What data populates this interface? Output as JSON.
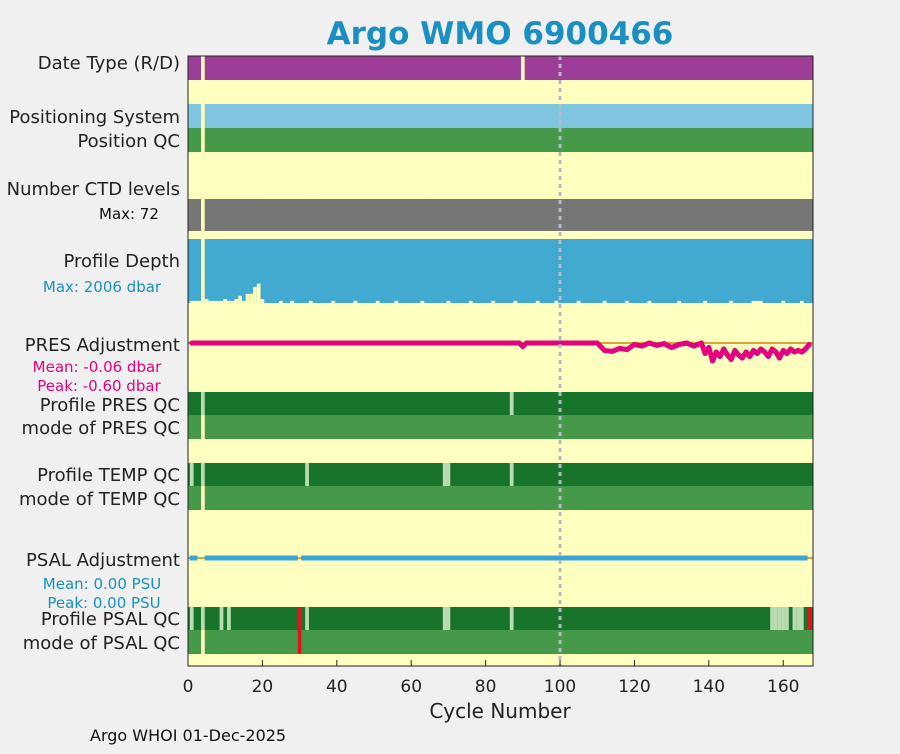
{
  "chart_data": {
    "type": "status_timeline",
    "title": "Argo WMO 6900466",
    "xlabel": "Cycle Number",
    "xlim": [
      0,
      168
    ],
    "xticks": [
      0,
      20,
      40,
      60,
      80,
      100,
      120,
      140,
      160
    ],
    "reference_line_x": 100,
    "footer": "Argo WHOI 01-Dec-2025",
    "rows": [
      {
        "id": "date-type",
        "label": "Date Type (R/D)",
        "color": "#9c3e98",
        "gaps": [
          4,
          90
        ]
      },
      {
        "id": "positioning-system",
        "label": "Positioning System",
        "color": "#7fc5e0",
        "gaps": [
          4
        ]
      },
      {
        "id": "position-qc",
        "label": "Position QC",
        "color": "#47994a",
        "gaps": [
          4
        ]
      },
      {
        "id": "ctd-levels",
        "label": "Number CTD levels",
        "sublabel": "Max: 72",
        "color": "#767676",
        "max": 72
      },
      {
        "id": "profile-depth",
        "label": "Profile Depth",
        "sublabel": "Max: 2006 dbar",
        "color": "#42aad0",
        "max": 2006
      },
      {
        "id": "pres-adjustment",
        "label": "PRES Adjustment",
        "sublabel1": "Mean: -0.06 dbar",
        "sublabel2": "Peak: -0.60 dbar",
        "color": "#e4007f"
      },
      {
        "id": "profile-pres-qc",
        "label": "Profile PRES QC",
        "color": "#17742a",
        "light_cycles": [
          4,
          87
        ]
      },
      {
        "id": "mode-pres-qc",
        "label": "mode of PRES QC",
        "color": "#47994a",
        "gaps": [
          4
        ]
      },
      {
        "id": "profile-temp-qc",
        "label": "Profile TEMP QC",
        "color": "#17742a",
        "light_cycles": [
          1,
          4,
          32,
          69,
          70,
          87
        ]
      },
      {
        "id": "mode-temp-qc",
        "label": "mode of TEMP QC",
        "color": "#47994a",
        "gaps": [
          4
        ]
      },
      {
        "id": "psal-adjustment",
        "label": "PSAL Adjustment",
        "sublabel1": "Mean: 0.00 PSU",
        "sublabel2": "Peak: 0.00 PSU",
        "color": "#3aa5d4"
      },
      {
        "id": "profile-psal-qc",
        "label": "Profile PSAL QC",
        "color": "#17742a",
        "light_cycles": [
          1,
          4,
          9,
          11,
          32,
          69,
          70,
          87,
          157,
          158,
          159,
          160,
          161,
          163,
          164,
          165
        ],
        "red_cycles": [
          30,
          167
        ]
      },
      {
        "id": "mode-psal-qc",
        "label": "mode of PSAL QC",
        "color": "#47994a",
        "gaps": [
          4
        ],
        "red_cycles": [
          30
        ]
      }
    ],
    "ctd_levels_reduced": [
      {
        "cycle": 1,
        "value": 69
      },
      {
        "cycle": 2,
        "value": 70
      },
      {
        "cycle": 3,
        "value": 70
      },
      {
        "cycle": 5,
        "value": 68
      },
      {
        "cycle": 6,
        "value": 70
      },
      {
        "cycle": 7,
        "value": 69
      },
      {
        "cycle": 8,
        "value": 69
      },
      {
        "cycle": 9,
        "value": 69
      },
      {
        "cycle": 10,
        "value": 68
      },
      {
        "cycle": 11,
        "value": 70
      },
      {
        "cycle": 12,
        "value": 68
      },
      {
        "cycle": 13,
        "value": 69
      },
      {
        "cycle": 14,
        "value": 69
      },
      {
        "cycle": 15,
        "value": 68
      },
      {
        "cycle": 16,
        "value": 68
      },
      {
        "cycle": 17,
        "value": 69
      },
      {
        "cycle": 18,
        "value": 67
      },
      {
        "cycle": 19,
        "value": 67
      },
      {
        "cycle": 20,
        "value": 69
      },
      {
        "cycle": 33,
        "value": 70
      },
      {
        "cycle": 64,
        "value": 70
      }
    ],
    "profile_depth_reduced": [
      {
        "cycle": 1,
        "value": 1940
      },
      {
        "cycle": 2,
        "value": 1940
      },
      {
        "cycle": 3,
        "value": 1940
      },
      {
        "cycle": 5,
        "value": 1880
      },
      {
        "cycle": 6,
        "value": 1940
      },
      {
        "cycle": 7,
        "value": 1940
      },
      {
        "cycle": 8,
        "value": 1940
      },
      {
        "cycle": 9,
        "value": 1940
      },
      {
        "cycle": 10,
        "value": 1880
      },
      {
        "cycle": 11,
        "value": 1940
      },
      {
        "cycle": 12,
        "value": 1940
      },
      {
        "cycle": 13,
        "value": 1880
      },
      {
        "cycle": 14,
        "value": 1780
      },
      {
        "cycle": 15,
        "value": 1940
      },
      {
        "cycle": 16,
        "value": 1720
      },
      {
        "cycle": 17,
        "value": 1720
      },
      {
        "cycle": 18,
        "value": 1500
      },
      {
        "cycle": 19,
        "value": 1400
      },
      {
        "cycle": 20,
        "value": 1880
      },
      {
        "cycle": 25,
        "value": 1940
      },
      {
        "cycle": 28,
        "value": 1940
      },
      {
        "cycle": 33,
        "value": 1940
      },
      {
        "cycle": 39,
        "value": 1940
      },
      {
        "cycle": 45,
        "value": 1940
      },
      {
        "cycle": 51,
        "value": 1940
      },
      {
        "cycle": 56,
        "value": 1940
      },
      {
        "cycle": 63,
        "value": 1940
      },
      {
        "cycle": 70,
        "value": 1940
      },
      {
        "cycle": 76,
        "value": 1940
      },
      {
        "cycle": 82,
        "value": 1940
      },
      {
        "cycle": 88,
        "value": 1940
      },
      {
        "cycle": 94,
        "value": 1940
      },
      {
        "cycle": 99,
        "value": 1940
      },
      {
        "cycle": 105,
        "value": 1940
      },
      {
        "cycle": 112,
        "value": 1940
      },
      {
        "cycle": 118,
        "value": 1940
      },
      {
        "cycle": 124,
        "value": 1940
      },
      {
        "cycle": 132,
        "value": 1940
      },
      {
        "cycle": 139,
        "value": 1940
      },
      {
        "cycle": 146,
        "value": 1940
      },
      {
        "cycle": 152,
        "value": 1940
      },
      {
        "cycle": 153,
        "value": 1940
      },
      {
        "cycle": 154,
        "value": 1940
      },
      {
        "cycle": 160,
        "value": 1940
      },
      {
        "cycle": 165,
        "value": 1940
      }
    ],
    "pres_adjustment_series": [
      {
        "cycle": 1,
        "value": 0.0
      },
      {
        "cycle": 89,
        "value": 0.0
      },
      {
        "cycle": 90,
        "value": -0.12
      },
      {
        "cycle": 91,
        "value": 0.0
      },
      {
        "cycle": 110,
        "value": 0.0
      },
      {
        "cycle": 112,
        "value": -0.25
      },
      {
        "cycle": 114,
        "value": -0.28
      },
      {
        "cycle": 116,
        "value": -0.18
      },
      {
        "cycle": 118,
        "value": -0.22
      },
      {
        "cycle": 120,
        "value": -0.05
      },
      {
        "cycle": 122,
        "value": -0.1
      },
      {
        "cycle": 124,
        "value": 0.0
      },
      {
        "cycle": 126,
        "value": -0.08
      },
      {
        "cycle": 128,
        "value": -0.02
      },
      {
        "cycle": 130,
        "value": -0.15
      },
      {
        "cycle": 132,
        "value": -0.05
      },
      {
        "cycle": 134,
        "value": 0.0
      },
      {
        "cycle": 136,
        "value": -0.1
      },
      {
        "cycle": 138,
        "value": 0.0
      },
      {
        "cycle": 139,
        "value": -0.35
      },
      {
        "cycle": 140,
        "value": -0.15
      },
      {
        "cycle": 141,
        "value": -0.6
      },
      {
        "cycle": 142,
        "value": -0.3
      },
      {
        "cycle": 143,
        "value": -0.45
      },
      {
        "cycle": 144,
        "value": -0.2
      },
      {
        "cycle": 145,
        "value": -0.4
      },
      {
        "cycle": 146,
        "value": -0.55
      },
      {
        "cycle": 147,
        "value": -0.25
      },
      {
        "cycle": 148,
        "value": -0.4
      },
      {
        "cycle": 149,
        "value": -0.5
      },
      {
        "cycle": 150,
        "value": -0.3
      },
      {
        "cycle": 151,
        "value": -0.45
      },
      {
        "cycle": 152,
        "value": -0.25
      },
      {
        "cycle": 153,
        "value": -0.35
      },
      {
        "cycle": 154,
        "value": -0.2
      },
      {
        "cycle": 155,
        "value": -0.3
      },
      {
        "cycle": 156,
        "value": -0.45
      },
      {
        "cycle": 157,
        "value": -0.2
      },
      {
        "cycle": 158,
        "value": -0.3
      },
      {
        "cycle": 159,
        "value": -0.5
      },
      {
        "cycle": 160,
        "value": -0.25
      },
      {
        "cycle": 161,
        "value": -0.35
      },
      {
        "cycle": 162,
        "value": -0.2
      },
      {
        "cycle": 163,
        "value": -0.3
      },
      {
        "cycle": 164,
        "value": -0.25
      },
      {
        "cycle": 165,
        "value": -0.3
      },
      {
        "cycle": 166,
        "value": -0.2
      },
      {
        "cycle": 167,
        "value": -0.05
      }
    ],
    "psal_adjustment_series": [
      {
        "start": 1,
        "end": 2
      },
      {
        "start": 5,
        "end": 29
      },
      {
        "start": 31,
        "end": 166
      }
    ]
  }
}
